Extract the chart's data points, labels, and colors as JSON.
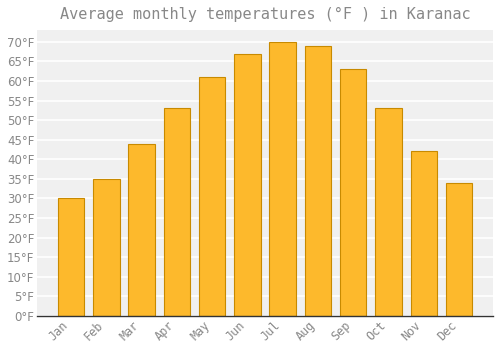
{
  "title": "Average monthly temperatures (°F ) in Karanac",
  "months": [
    "Jan",
    "Feb",
    "Mar",
    "Apr",
    "May",
    "Jun",
    "Jul",
    "Aug",
    "Sep",
    "Oct",
    "Nov",
    "Dec"
  ],
  "values": [
    30,
    35,
    44,
    53,
    61,
    67,
    70,
    69,
    63,
    53,
    42,
    34
  ],
  "bar_color_top": "#FDB92C",
  "bar_color_bottom": "#F5A800",
  "bar_edge_color": "#C88A00",
  "background_color": "#FFFFFF",
  "plot_bg_color": "#F0F0F0",
  "grid_color": "#FFFFFF",
  "text_color": "#888888",
  "title_color": "#888888",
  "axis_color": "#333333",
  "ylim": [
    0,
    73
  ],
  "yticks": [
    0,
    5,
    10,
    15,
    20,
    25,
    30,
    35,
    40,
    45,
    50,
    55,
    60,
    65,
    70
  ],
  "ylabel_suffix": "°F",
  "title_fontsize": 11,
  "tick_fontsize": 8.5,
  "bar_width": 0.75
}
